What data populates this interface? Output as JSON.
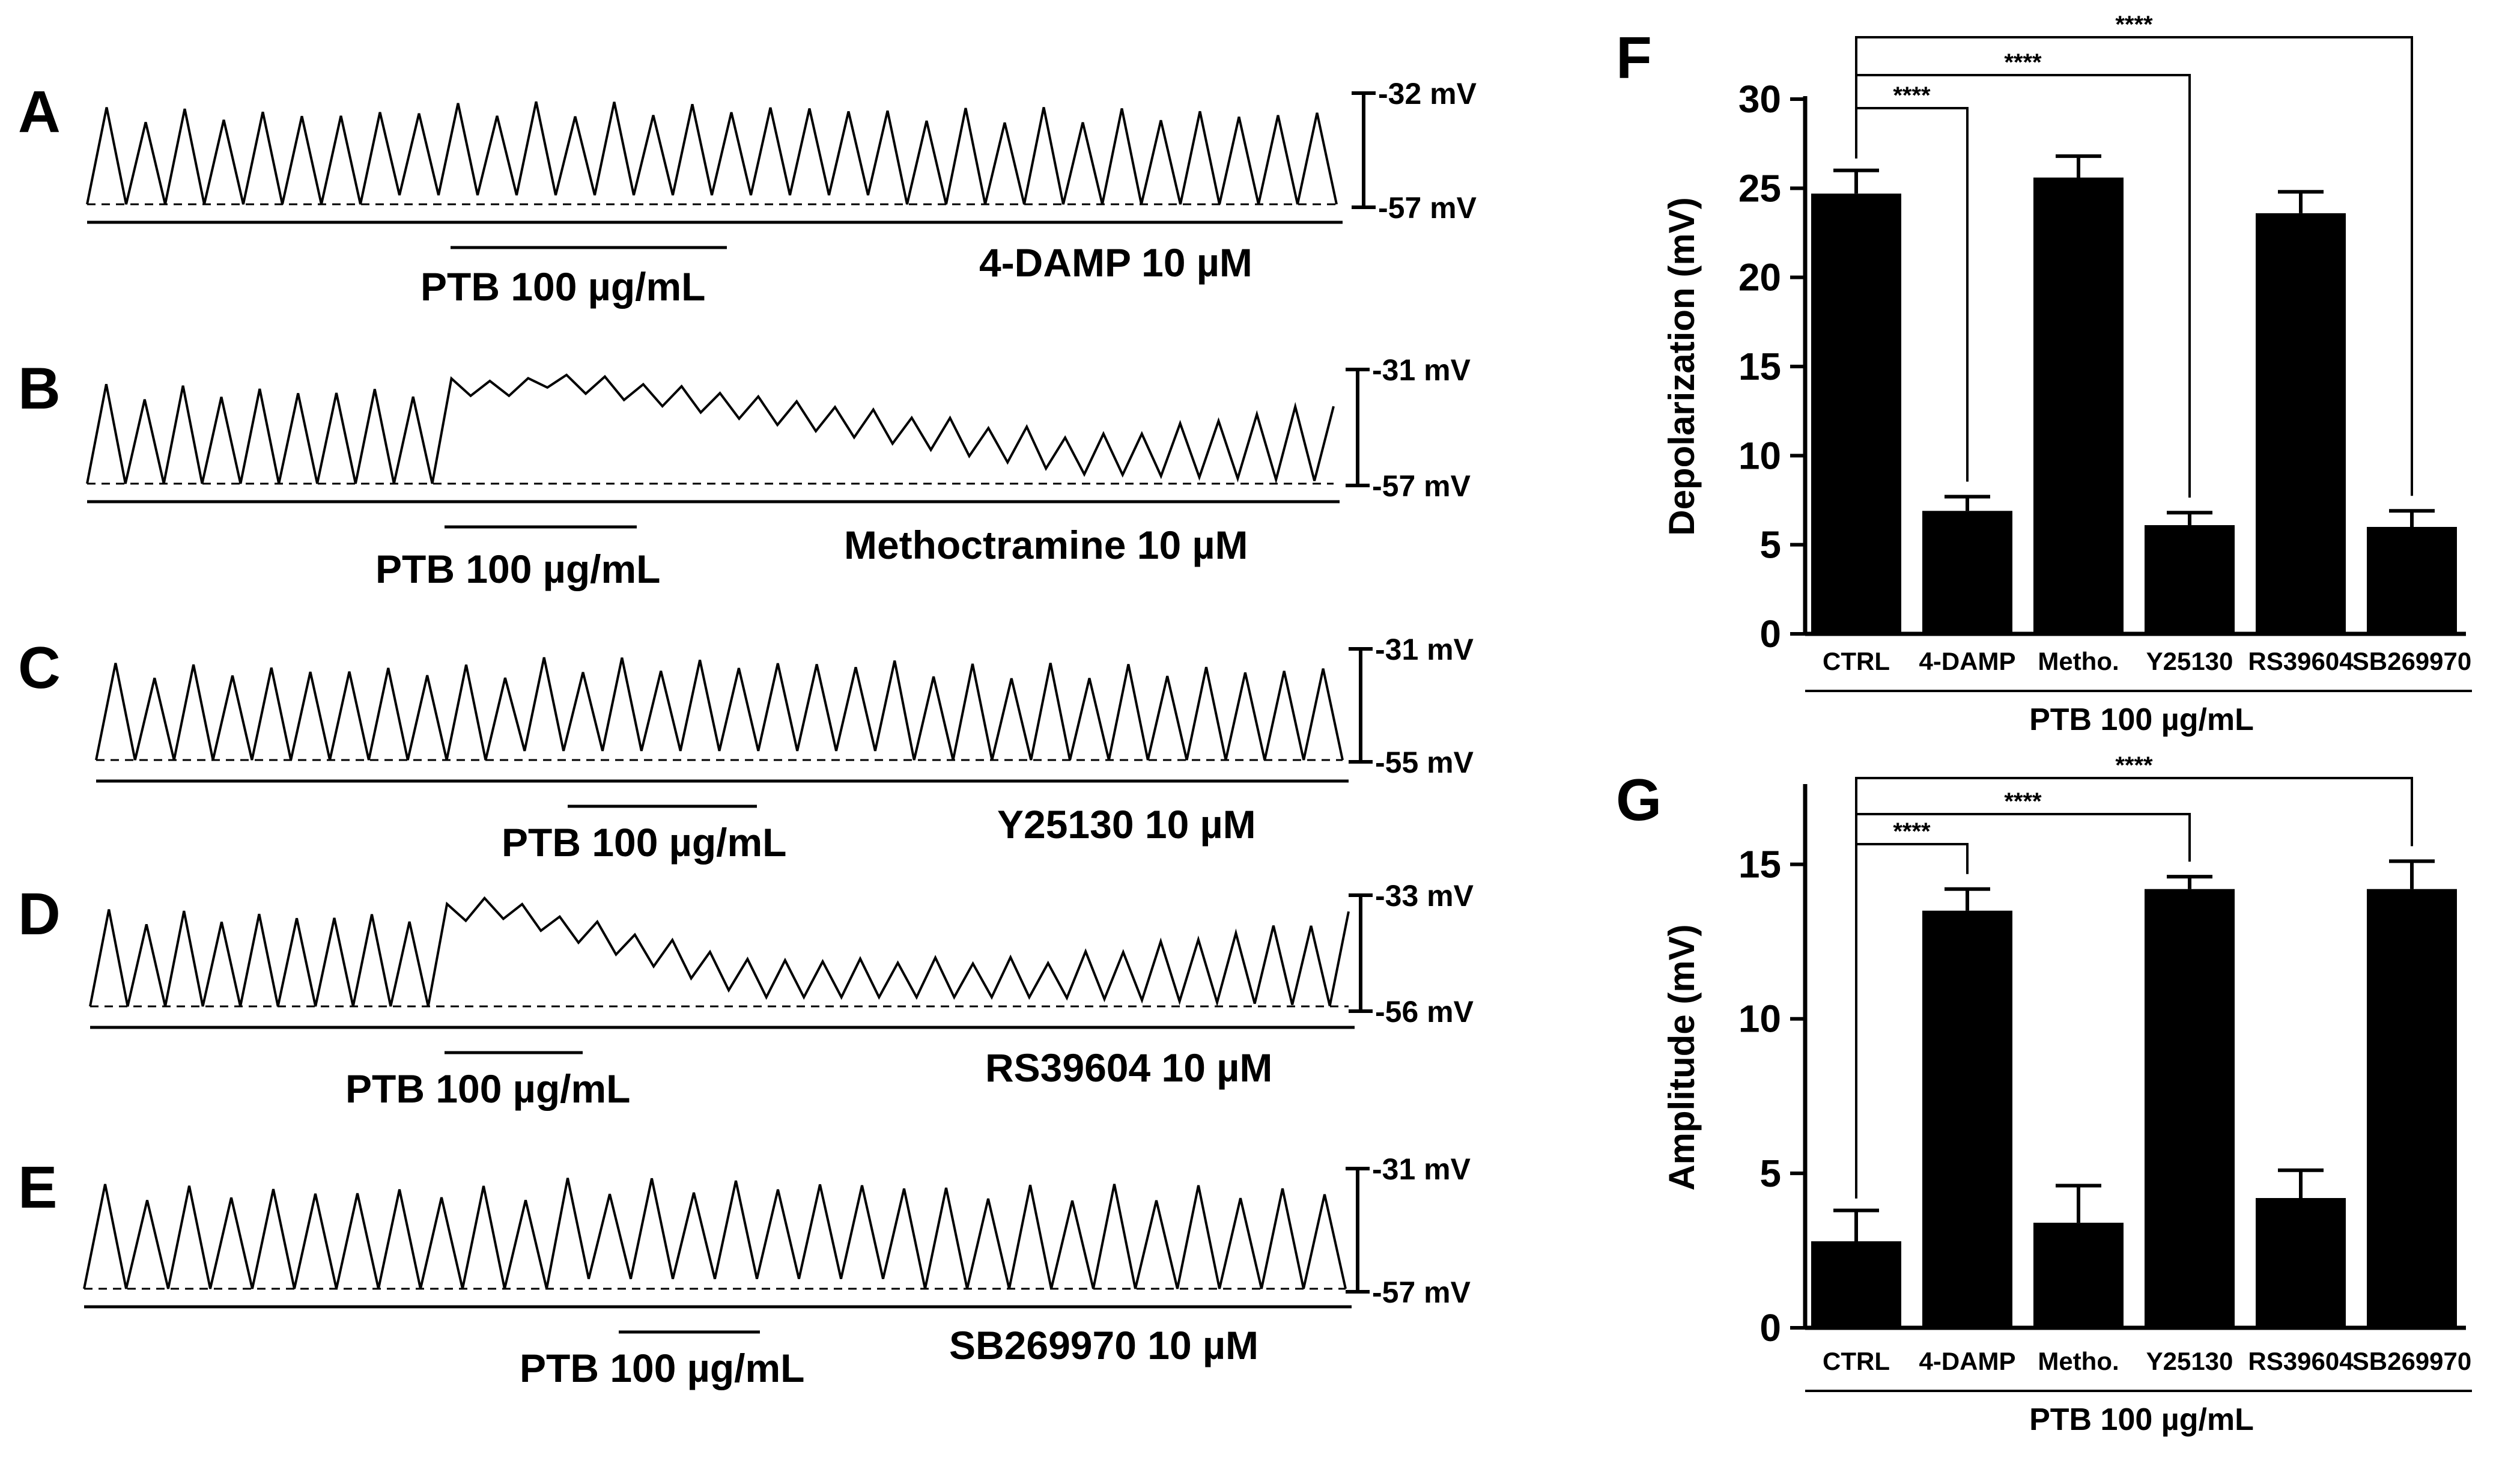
{
  "traces": [
    {
      "letter": "A",
      "top_mv": "-32 mV",
      "bottom_mv": "-57 mV",
      "ptb_label": "PTB 100 µg/mL",
      "drug_label": "4-DAMP 10 µM"
    },
    {
      "letter": "B",
      "top_mv": "-31 mV",
      "bottom_mv": "-57 mV",
      "ptb_label": "PTB 100 µg/mL",
      "drug_label": "Methoctramine 10 µM"
    },
    {
      "letter": "C",
      "top_mv": "-31 mV",
      "bottom_mv": "-55 mV",
      "ptb_label": "PTB 100 µg/mL",
      "drug_label": "Y25130 10 µM"
    },
    {
      "letter": "D",
      "top_mv": "-33 mV",
      "bottom_mv": "-56 mV",
      "ptb_label": "PTB 100 µg/mL",
      "drug_label": "RS39604 10 µM"
    },
    {
      "letter": "E",
      "top_mv": "-31 mV",
      "bottom_mv": "-57 mV",
      "ptb_label": "PTB 100 µg/mL",
      "drug_label": "SB269970 10 µM"
    }
  ],
  "chart_data": [
    {
      "panel": "F",
      "type": "bar",
      "categories": [
        "CTRL",
        "4-DAMP",
        "Metho.",
        "Y25130",
        "RS39604",
        "SB269970"
      ],
      "values": [
        24.7,
        6.9,
        25.6,
        6.1,
        23.6,
        6.0
      ],
      "errors": [
        1.3,
        0.8,
        1.2,
        0.7,
        1.2,
        0.9
      ],
      "ylabel": "Depolarization (mV)",
      "ylim": [
        0,
        30
      ],
      "yticks": [
        0,
        5,
        10,
        15,
        20,
        25,
        30
      ],
      "group_label": "PTB 100 µg/mL",
      "comparisons": [
        {
          "from": "CTRL",
          "to": "4-DAMP",
          "label": "****"
        },
        {
          "from": "CTRL",
          "to": "Y25130",
          "label": "****"
        },
        {
          "from": "CTRL",
          "to": "SB269970",
          "label": "****"
        }
      ]
    },
    {
      "panel": "G",
      "type": "bar",
      "categories": [
        "CTRL",
        "4-DAMP",
        "Metho.",
        "Y25130",
        "RS39604",
        "SB269970"
      ],
      "values": [
        2.8,
        13.5,
        3.4,
        14.2,
        4.2,
        14.2
      ],
      "errors": [
        1.0,
        0.7,
        1.2,
        0.4,
        0.9,
        0.9
      ],
      "ylabel": "Amplitude (mV)",
      "ylim": [
        0,
        17.5
      ],
      "yticks": [
        0,
        5,
        10,
        15
      ],
      "group_label": "PTB 100 µg/mL",
      "comparisons": [
        {
          "from": "CTRL",
          "to": "4-DAMP",
          "label": "****"
        },
        {
          "from": "CTRL",
          "to": "Y25130",
          "label": "****"
        },
        {
          "from": "CTRL",
          "to": "SB269970",
          "label": "****"
        }
      ]
    }
  ]
}
